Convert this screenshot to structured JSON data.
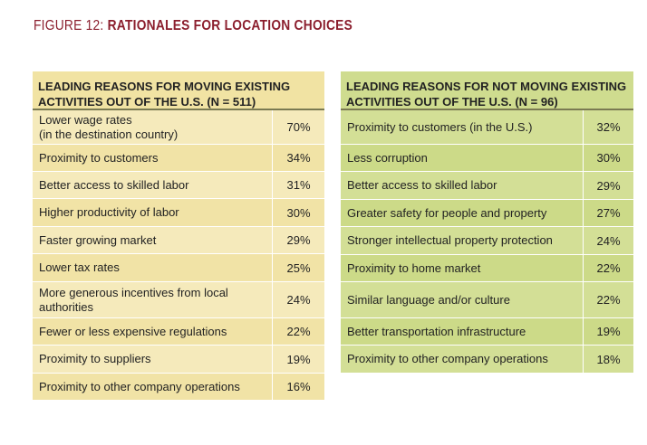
{
  "figure": {
    "label": "FIGURE 12:",
    "name": "RATIONALES FOR LOCATION CHOICES"
  },
  "colors": {
    "title": "#8b1e2d",
    "left_header": "#f1e3a3",
    "left_row": "#f5eabb",
    "right_header": "#cfdc8f",
    "right_row": "#d3df96"
  },
  "chart_data": [
    {
      "type": "table",
      "title": "LEADING REASONS FOR MOVING EXISTING ACTIVITIES OUT OF THE U.S. (N = 511)",
      "header_lines": [
        "LEADING REASONS FOR MOVING EXISTING",
        "ACTIVITIES OUT OF THE U.S. (N = 511)"
      ],
      "rows": [
        {
          "lines": [
            "Lower wage rates",
            "(in the destination country)"
          ],
          "value": "70%"
        },
        {
          "lines": [
            "Proximity to customers"
          ],
          "value": "34%"
        },
        {
          "lines": [
            "Better access to skilled labor"
          ],
          "value": "31%"
        },
        {
          "lines": [
            "Higher productivity of labor"
          ],
          "value": "30%"
        },
        {
          "lines": [
            "Faster growing market"
          ],
          "value": "29%"
        },
        {
          "lines": [
            "Lower tax rates"
          ],
          "value": "25%"
        },
        {
          "lines": [
            "More generous incentives from local",
            "authorities"
          ],
          "value": "24%"
        },
        {
          "lines": [
            "Fewer or less expensive regulations"
          ],
          "value": "22%"
        },
        {
          "lines": [
            "Proximity to suppliers"
          ],
          "value": "19%"
        },
        {
          "lines": [
            "Proximity to other company operations"
          ],
          "value": "16%"
        }
      ]
    },
    {
      "type": "table",
      "title": "LEADING REASONS FOR NOT MOVING EXISTING ACTIVITIES OUT OF THE U.S. (N = 96)",
      "header_lines": [
        "LEADING REASONS FOR NOT MOVING EXISTING",
        "ACTIVITIES OUT OF THE U.S. (N = 96)"
      ],
      "rows": [
        {
          "lines": [
            "Proximity to customers (in the U.S.)"
          ],
          "value": "32%"
        },
        {
          "lines": [
            "Less corruption"
          ],
          "value": "30%"
        },
        {
          "lines": [
            "Better access to skilled labor"
          ],
          "value": "29%"
        },
        {
          "lines": [
            "Greater safety for people and property"
          ],
          "value": "27%"
        },
        {
          "lines": [
            "Stronger intellectual property protection"
          ],
          "value": "24%"
        },
        {
          "lines": [
            "Proximity to home market"
          ],
          "value": "22%"
        },
        {
          "lines": [
            "Similar language and/or culture"
          ],
          "value": "22%"
        },
        {
          "lines": [
            "Better transportation infrastructure"
          ],
          "value": "19%"
        },
        {
          "lines": [
            "Proximity to other company operations"
          ],
          "value": "18%"
        }
      ]
    }
  ]
}
